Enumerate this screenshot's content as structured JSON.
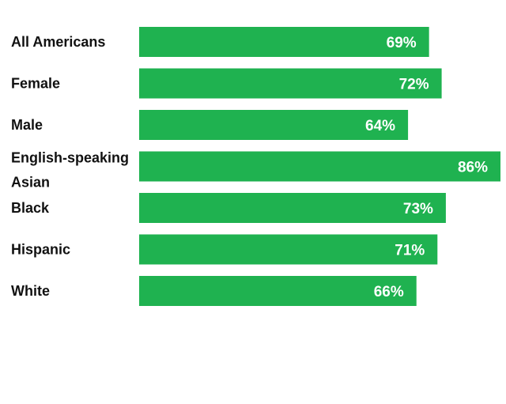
{
  "chart_data": {
    "type": "bar",
    "orientation": "horizontal",
    "title": "",
    "xlabel": "",
    "ylabel": "",
    "categories": [
      "All Americans",
      "Female",
      "Male",
      "English-speaking Asian",
      "Black",
      "Hispanic",
      "White"
    ],
    "category_lines": [
      [
        "All Americans"
      ],
      [
        "Female"
      ],
      [
        "Male"
      ],
      [
        "English-speaking",
        "Asian"
      ],
      [
        "Black"
      ],
      [
        "Hispanic"
      ],
      [
        "White"
      ]
    ],
    "groups": [
      [
        "All Americans"
      ],
      [
        "Female",
        "Male"
      ],
      [
        "English-speaking Asian",
        "Black",
        "Hispanic",
        "White"
      ]
    ],
    "values": [
      69,
      72,
      64,
      86,
      73,
      71,
      66
    ],
    "value_labels": [
      "69%",
      "72%",
      "64%",
      "86%",
      "73%",
      "71%",
      "66%"
    ],
    "xlim": [
      0,
      86
    ],
    "bar_color": "#1fb250",
    "value_label_color": "#ffffff",
    "grid": false,
    "legend": "none"
  }
}
